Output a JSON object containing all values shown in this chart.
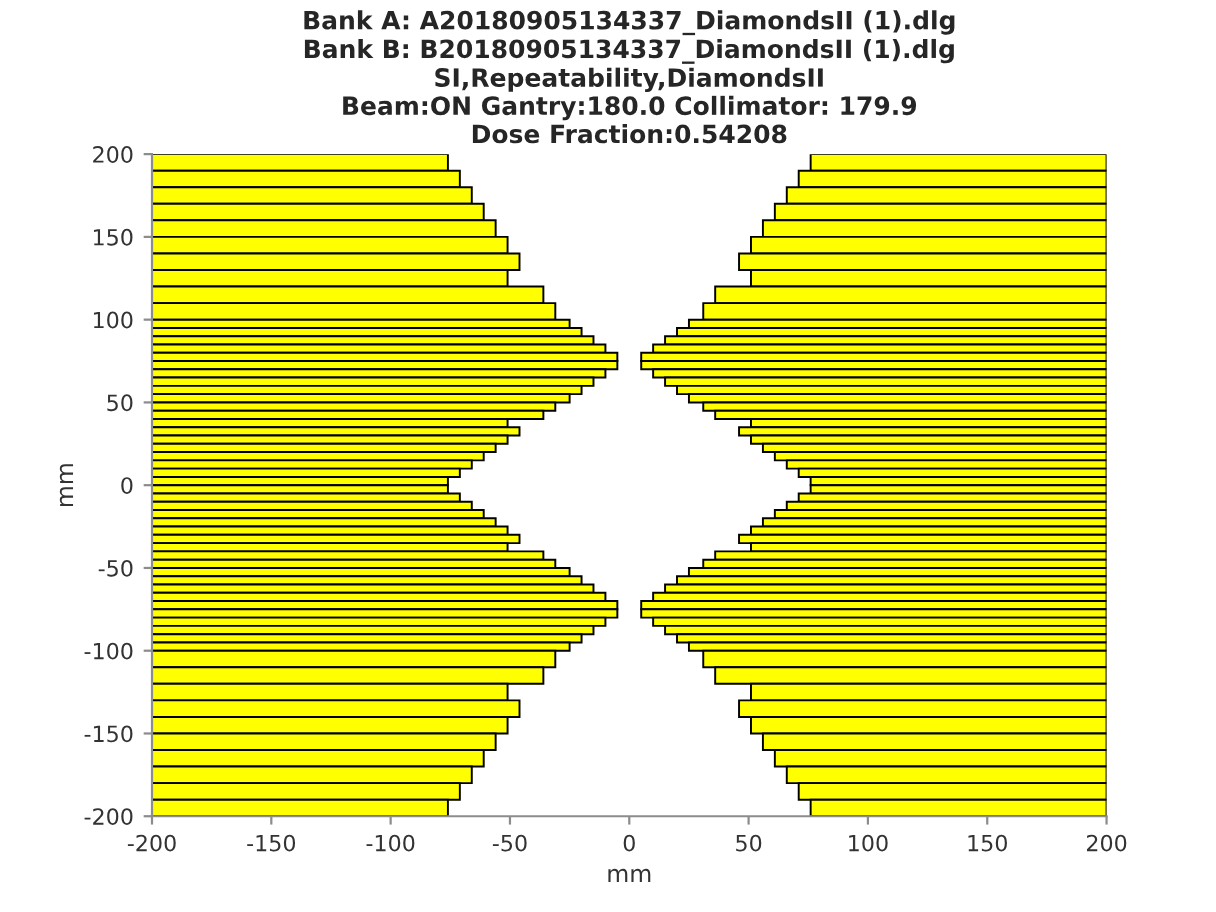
{
  "chart_data": {
    "type": "bar",
    "orientation": "horizontal",
    "title": "Bank A: A20180905134337_DiamondsII (1).dlg\nBank B: B20180905134337_DiamondsII (1).dlg\nSI,Repeatability,DiamondsII\nBeam:ON Gantry:180.0 Collimator: 179.9\nDose Fraction:0.54208",
    "xlabel": "mm",
    "ylabel": "mm",
    "x": [
      195,
      185,
      175,
      165,
      155,
      145,
      135,
      125,
      115,
      105,
      97.5,
      92.5,
      87.5,
      82.5,
      77.5,
      72.5,
      67.5,
      62.5,
      57.5,
      52.5,
      47.5,
      42.5,
      37.5,
      32.5,
      27.5,
      22.5,
      17.5,
      12.5,
      7.5,
      2.5,
      -2.5,
      -7.5,
      -12.5,
      -17.5,
      -22.5,
      -27.5,
      -32.5,
      -37.5,
      -42.5,
      -47.5,
      -52.5,
      -57.5,
      -62.5,
      -67.5,
      -72.5,
      -77.5,
      -82.5,
      -87.5,
      -92.5,
      -97.5,
      -105,
      -115,
      -125,
      -135,
      -145,
      -155,
      -165,
      -175,
      -185,
      -195
    ],
    "series": [
      {
        "color": "#ffff00",
        "base": [
          -200,
          -200,
          -200,
          -200,
          -200,
          -200,
          -200,
          -200,
          -200,
          -200,
          -200,
          -200,
          -200,
          -200,
          -200,
          -200,
          -200,
          -200,
          -200,
          -200,
          -200,
          -200,
          -200,
          -200,
          -200,
          -200,
          -200,
          -200,
          -200,
          -200,
          -200,
          -200,
          -200,
          -200,
          -200,
          -200,
          -200,
          -200,
          -200,
          -200,
          -200,
          -200,
          -200,
          -200,
          -200,
          -200,
          -200,
          -200,
          -200,
          -200,
          -200,
          -200,
          -200,
          -200,
          -200,
          -200,
          -200,
          -200,
          -200,
          -200
        ],
        "values": [
          124,
          129,
          134,
          139,
          144,
          149,
          154,
          149,
          164,
          169,
          175,
          180,
          185,
          190,
          195,
          195,
          190,
          185,
          180,
          175,
          169,
          164,
          149,
          154,
          149,
          144,
          139,
          134,
          129,
          124,
          124,
          129,
          134,
          139,
          144,
          149,
          154,
          149,
          164,
          169,
          175,
          180,
          185,
          190,
          195,
          195,
          190,
          185,
          180,
          175,
          169,
          164,
          149,
          154,
          149,
          144,
          139,
          134,
          129,
          124
        ]
      },
      {
        "color": "#ffff00",
        "base": [
          76,
          71,
          66,
          61,
          56,
          51,
          46,
          51,
          36,
          31,
          25,
          20,
          15,
          10,
          5,
          5,
          10,
          15,
          20,
          25,
          31,
          36,
          51,
          46,
          51,
          56,
          61,
          66,
          71,
          76,
          76,
          71,
          66,
          61,
          56,
          51,
          46,
          51,
          36,
          31,
          25,
          20,
          15,
          10,
          5,
          5,
          10,
          15,
          20,
          25,
          31,
          36,
          51,
          46,
          51,
          56,
          61,
          66,
          71,
          76
        ],
        "values": [
          124,
          129,
          134,
          139,
          144,
          149,
          154,
          149,
          164,
          169,
          175,
          180,
          185,
          190,
          195,
          195,
          190,
          185,
          180,
          175,
          169,
          164,
          149,
          154,
          149,
          144,
          139,
          134,
          129,
          124,
          124,
          129,
          134,
          139,
          144,
          149,
          154,
          149,
          164,
          169,
          175,
          180,
          185,
          190,
          195,
          195,
          190,
          185,
          180,
          175,
          169,
          164,
          149,
          154,
          149,
          144,
          139,
          134,
          129,
          124
        ]
      }
    ],
    "xlim": [
      -200,
      200
    ],
    "xticks": [
      -200,
      -150,
      -100,
      -50,
      0,
      50,
      100,
      150,
      200
    ],
    "ylim": [
      -200,
      200
    ],
    "yticks": [
      -200,
      -150,
      -100,
      -50,
      0,
      50,
      100,
      150,
      200
    ]
  }
}
